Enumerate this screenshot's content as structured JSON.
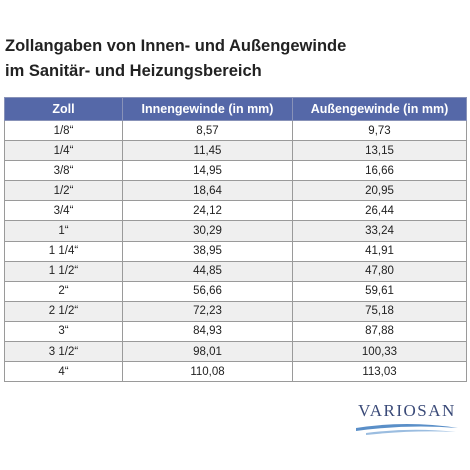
{
  "header": {
    "title": [
      "Zollangaben von Innen- und Außengewinde",
      "im Sanitär- und Heizungsbereich"
    ]
  },
  "table": {
    "columns": [
      "Zoll",
      "Innengewinde (in mm)",
      "Außengewinde (in mm)"
    ],
    "rows": [
      [
        "1/8“",
        "8,57",
        "9,73"
      ],
      [
        "1/4“",
        "11,45",
        "13,15"
      ],
      [
        "3/8“",
        "14,95",
        "16,66"
      ],
      [
        "1/2“",
        "18,64",
        "20,95"
      ],
      [
        "3/4“",
        "24,12",
        "26,44"
      ],
      [
        "1“",
        "30,29",
        "33,24"
      ],
      [
        "1 1/4“",
        "38,95",
        "41,91"
      ],
      [
        "1 1/2“",
        "44,85",
        "47,80"
      ],
      [
        "2“",
        "56,66",
        "59,61"
      ],
      [
        "2 1/2“",
        "72,23",
        "75,18"
      ],
      [
        "3“",
        "84,93",
        "87,88"
      ],
      [
        "3 1/2“",
        "98,01",
        "100,33"
      ],
      [
        "4“",
        "110,08",
        "113,03"
      ]
    ]
  },
  "logo": {
    "text": "VARIOSAN"
  }
}
